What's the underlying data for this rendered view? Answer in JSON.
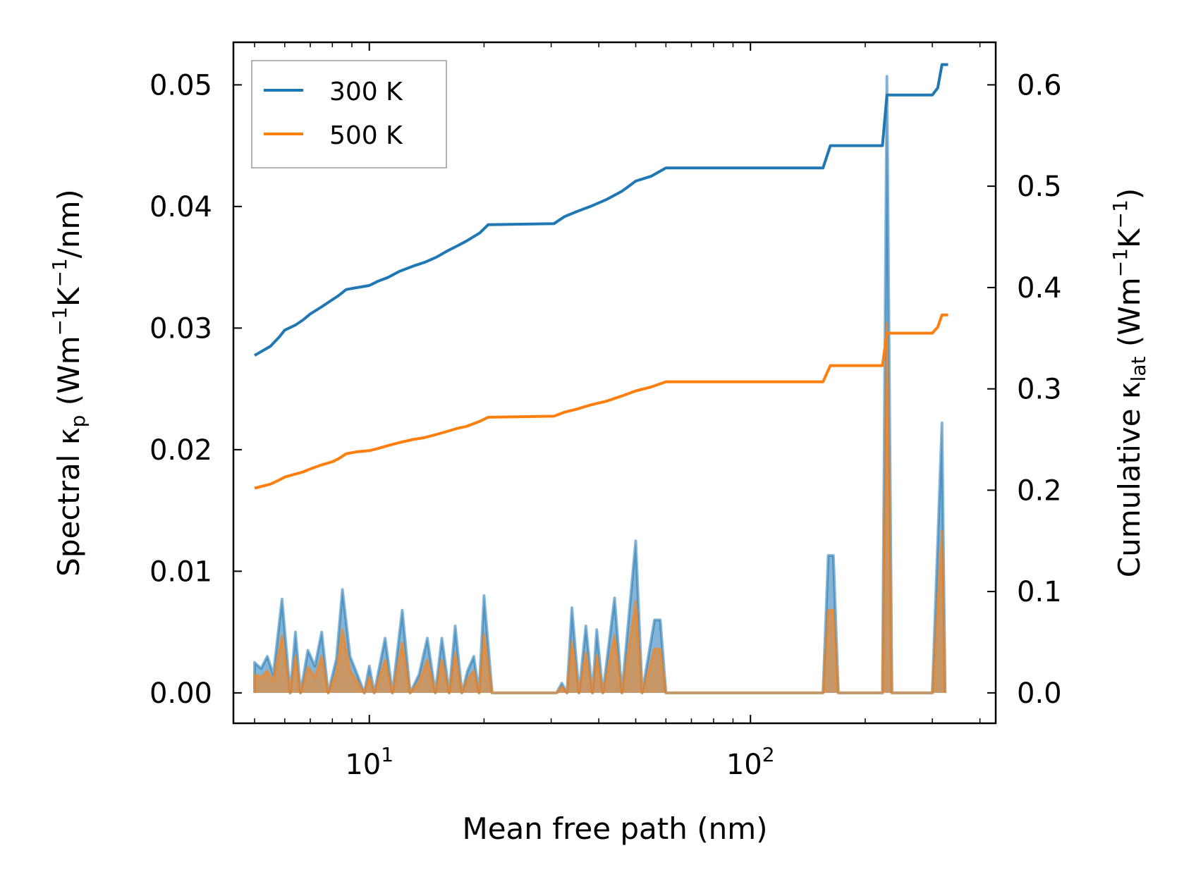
{
  "chart_data": {
    "type": "line",
    "xscale": "log",
    "xlabel": "Mean free path (nm)",
    "xlim": [
      4.4,
      440
    ],
    "x_ticks": [
      {
        "base": "10",
        "exp": "1",
        "value": 10
      },
      {
        "base": "10",
        "exp": "2",
        "value": 100
      }
    ],
    "left_axis": {
      "label": {
        "prefix": "Spectral κ",
        "sub": "p",
        "open": " (Wm",
        "sup1": "−1",
        "mid": "K",
        "sup2": "−1",
        "close": "/nm)"
      },
      "ylim": [
        -0.0025,
        0.0535
      ],
      "ticks": [
        "0.00",
        "0.01",
        "0.02",
        "0.03",
        "0.04",
        "0.05"
      ]
    },
    "right_axis": {
      "label": {
        "prefix": "Cumulative κ",
        "sub": "lat",
        "open": " (Wm",
        "sup1": "−1",
        "mid": "K",
        "sup2": "−1",
        "close": ")"
      },
      "ylim": [
        -0.03,
        0.642
      ],
      "ticks": [
        "0.0",
        "0.1",
        "0.2",
        "0.3",
        "0.4",
        "0.5",
        "0.6"
      ]
    },
    "legend_position": "upper-left",
    "series": [
      {
        "name": "300 K",
        "color": "#1f77b4",
        "cumulative": [
          [
            5.0,
            0.333
          ],
          [
            5.5,
            0.342
          ],
          [
            5.8,
            0.351
          ],
          [
            6.0,
            0.358
          ],
          [
            6.4,
            0.363
          ],
          [
            6.7,
            0.368
          ],
          [
            7.0,
            0.374
          ],
          [
            7.5,
            0.381
          ],
          [
            8.0,
            0.388
          ],
          [
            8.3,
            0.392
          ],
          [
            8.7,
            0.398
          ],
          [
            9.3,
            0.4
          ],
          [
            10.0,
            0.402
          ],
          [
            10.5,
            0.406
          ],
          [
            11.2,
            0.41
          ],
          [
            12.0,
            0.416
          ],
          [
            13.0,
            0.421
          ],
          [
            14.0,
            0.425
          ],
          [
            15.0,
            0.43
          ],
          [
            16.0,
            0.436
          ],
          [
            17.0,
            0.441
          ],
          [
            18.0,
            0.446
          ],
          [
            19.5,
            0.454
          ],
          [
            20.5,
            0.462
          ],
          [
            30.5,
            0.463
          ],
          [
            32.5,
            0.47
          ],
          [
            35.0,
            0.475
          ],
          [
            38.0,
            0.48
          ],
          [
            42.0,
            0.487
          ],
          [
            46.0,
            0.495
          ],
          [
            50.0,
            0.505
          ],
          [
            55.0,
            0.51
          ],
          [
            60.0,
            0.518
          ],
          [
            155.0,
            0.518
          ],
          [
            162.0,
            0.54
          ],
          [
            222.0,
            0.54
          ],
          [
            228.0,
            0.59
          ],
          [
            300.0,
            0.59
          ],
          [
            310.0,
            0.597
          ],
          [
            318.0,
            0.62
          ],
          [
            330.0,
            0.62
          ]
        ],
        "spectral": [
          [
            5.0,
            0.0
          ],
          [
            5.0,
            0.0025
          ],
          [
            5.2,
            0.002
          ],
          [
            5.4,
            0.003
          ],
          [
            5.6,
            0.0015
          ],
          [
            5.9,
            0.0077
          ],
          [
            6.2,
            0.0
          ],
          [
            6.4,
            0.005
          ],
          [
            6.6,
            0.0
          ],
          [
            6.9,
            0.0035
          ],
          [
            7.2,
            0.0022
          ],
          [
            7.5,
            0.005
          ],
          [
            7.8,
            0.0
          ],
          [
            8.2,
            0.0028
          ],
          [
            8.5,
            0.0085
          ],
          [
            8.9,
            0.003
          ],
          [
            9.3,
            0.0015
          ],
          [
            9.7,
            0.0
          ],
          [
            10.0,
            0.0022
          ],
          [
            10.3,
            0.0
          ],
          [
            11.0,
            0.0045
          ],
          [
            11.5,
            0.0
          ],
          [
            12.2,
            0.0068
          ],
          [
            12.8,
            0.0
          ],
          [
            13.5,
            0.0015
          ],
          [
            14.2,
            0.0045
          ],
          [
            14.9,
            0.0
          ],
          [
            15.5,
            0.0045
          ],
          [
            16.2,
            0.0
          ],
          [
            16.8,
            0.0055
          ],
          [
            17.5,
            0.0
          ],
          [
            18.1,
            0.0018
          ],
          [
            18.8,
            0.003
          ],
          [
            19.4,
            0.0
          ],
          [
            20.0,
            0.008
          ],
          [
            21.0,
            0.0
          ],
          [
            31.0,
            0.0
          ],
          [
            32.0,
            0.0008
          ],
          [
            33.0,
            0.0
          ],
          [
            34.0,
            0.007
          ],
          [
            35.5,
            0.0
          ],
          [
            37.0,
            0.0055
          ],
          [
            38.5,
            0.0
          ],
          [
            39.5,
            0.0052
          ],
          [
            41.0,
            0.0
          ],
          [
            44.0,
            0.0078
          ],
          [
            46.0,
            0.0
          ],
          [
            50.0,
            0.0125
          ],
          [
            52.0,
            0.0
          ],
          [
            56.0,
            0.006
          ],
          [
            58.0,
            0.006
          ],
          [
            60.0,
            0.0
          ],
          [
            155.0,
            0.0
          ],
          [
            160.0,
            0.0113
          ],
          [
            165.0,
            0.0113
          ],
          [
            170.0,
            0.0
          ],
          [
            222.0,
            0.0
          ],
          [
            228.0,
            0.0507
          ],
          [
            235.0,
            0.0
          ],
          [
            300.0,
            0.0
          ],
          [
            318.0,
            0.0222
          ],
          [
            324.0,
            0.0
          ]
        ]
      },
      {
        "name": "500 K",
        "color": "#ff7f0e",
        "cumulative": [
          [
            5.0,
            0.202
          ],
          [
            5.5,
            0.206
          ],
          [
            5.8,
            0.21
          ],
          [
            6.0,
            0.213
          ],
          [
            6.4,
            0.216
          ],
          [
            6.7,
            0.218
          ],
          [
            7.0,
            0.221
          ],
          [
            7.5,
            0.225
          ],
          [
            8.0,
            0.228
          ],
          [
            8.3,
            0.231
          ],
          [
            8.7,
            0.236
          ],
          [
            9.3,
            0.238
          ],
          [
            10.0,
            0.239
          ],
          [
            10.5,
            0.241
          ],
          [
            11.2,
            0.244
          ],
          [
            12.0,
            0.247
          ],
          [
            13.0,
            0.25
          ],
          [
            14.0,
            0.252
          ],
          [
            15.0,
            0.255
          ],
          [
            16.0,
            0.258
          ],
          [
            17.0,
            0.261
          ],
          [
            18.0,
            0.263
          ],
          [
            19.5,
            0.268
          ],
          [
            20.5,
            0.272
          ],
          [
            30.5,
            0.273
          ],
          [
            32.5,
            0.277
          ],
          [
            35.0,
            0.28
          ],
          [
            38.0,
            0.284
          ],
          [
            42.0,
            0.288
          ],
          [
            46.0,
            0.293
          ],
          [
            50.0,
            0.298
          ],
          [
            55.0,
            0.302
          ],
          [
            60.0,
            0.307
          ],
          [
            155.0,
            0.307
          ],
          [
            162.0,
            0.323
          ],
          [
            222.0,
            0.323
          ],
          [
            228.0,
            0.355
          ],
          [
            300.0,
            0.355
          ],
          [
            310.0,
            0.361
          ],
          [
            318.0,
            0.373
          ],
          [
            330.0,
            0.373
          ]
        ],
        "spectral": [
          [
            5.0,
            0.0
          ],
          [
            5.0,
            0.0015
          ],
          [
            5.2,
            0.0013
          ],
          [
            5.4,
            0.0018
          ],
          [
            5.6,
            0.001
          ],
          [
            5.9,
            0.0047
          ],
          [
            6.2,
            0.0
          ],
          [
            6.4,
            0.003
          ],
          [
            6.6,
            0.0
          ],
          [
            6.9,
            0.0021
          ],
          [
            7.2,
            0.0013
          ],
          [
            7.5,
            0.003
          ],
          [
            7.8,
            0.0
          ],
          [
            8.2,
            0.0017
          ],
          [
            8.5,
            0.0052
          ],
          [
            8.9,
            0.0018
          ],
          [
            9.3,
            0.0009
          ],
          [
            9.7,
            0.0
          ],
          [
            10.0,
            0.0013
          ],
          [
            10.3,
            0.0
          ],
          [
            11.0,
            0.0027
          ],
          [
            11.5,
            0.0
          ],
          [
            12.2,
            0.0041
          ],
          [
            12.8,
            0.0
          ],
          [
            13.5,
            0.0009
          ],
          [
            14.2,
            0.0027
          ],
          [
            14.9,
            0.0
          ],
          [
            15.5,
            0.0027
          ],
          [
            16.2,
            0.0
          ],
          [
            16.8,
            0.0033
          ],
          [
            17.5,
            0.0
          ],
          [
            18.1,
            0.0011
          ],
          [
            18.8,
            0.0018
          ],
          [
            19.4,
            0.0
          ],
          [
            20.0,
            0.0048
          ],
          [
            21.0,
            0.0
          ],
          [
            31.0,
            0.0
          ],
          [
            32.0,
            0.0005
          ],
          [
            33.0,
            0.0
          ],
          [
            34.0,
            0.0042
          ],
          [
            35.5,
            0.0
          ],
          [
            37.0,
            0.0033
          ],
          [
            38.5,
            0.0
          ],
          [
            39.5,
            0.0031
          ],
          [
            41.0,
            0.0
          ],
          [
            44.0,
            0.0047
          ],
          [
            46.0,
            0.0
          ],
          [
            50.0,
            0.0075
          ],
          [
            52.0,
            0.0
          ],
          [
            56.0,
            0.0036
          ],
          [
            58.0,
            0.0036
          ],
          [
            60.0,
            0.0
          ],
          [
            155.0,
            0.0
          ],
          [
            160.0,
            0.0068
          ],
          [
            165.0,
            0.0068
          ],
          [
            170.0,
            0.0
          ],
          [
            222.0,
            0.0
          ],
          [
            228.0,
            0.0304
          ],
          [
            235.0,
            0.0
          ],
          [
            300.0,
            0.0
          ],
          [
            318.0,
            0.0133
          ],
          [
            324.0,
            0.0
          ]
        ]
      }
    ]
  }
}
